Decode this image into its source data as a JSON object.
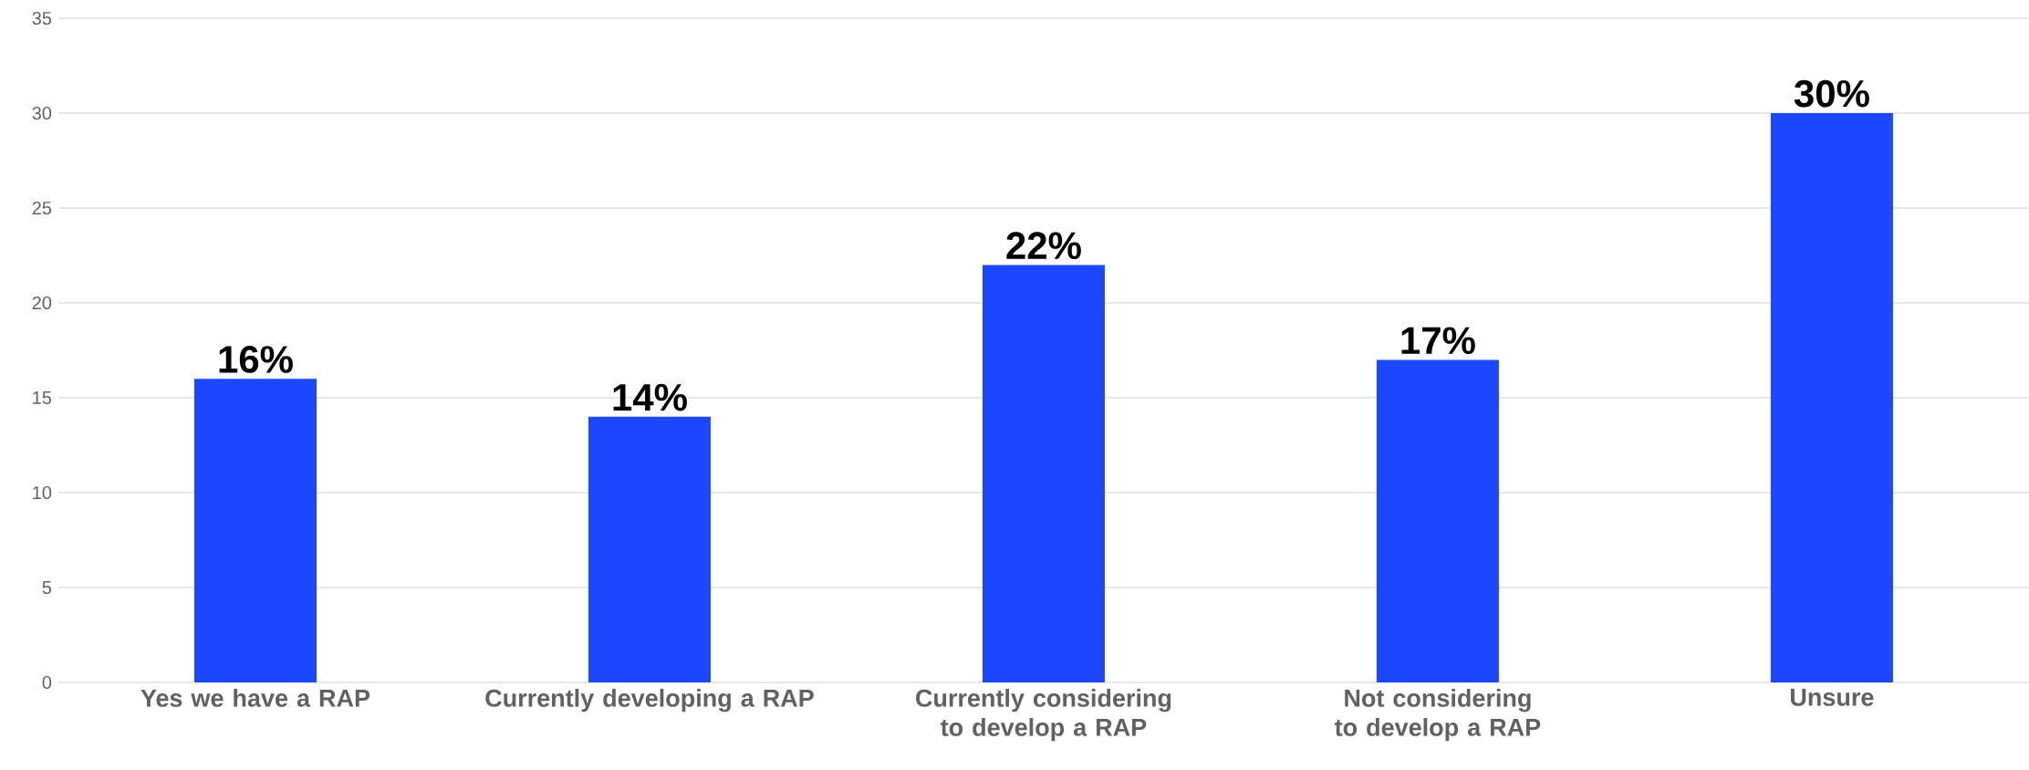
{
  "chart_data": {
    "type": "bar",
    "categories": [
      "Yes we have a RAP",
      "Currently developing a RAP",
      "Currently considering to develop a RAP",
      "Not considering to develop a RAP",
      "Unsure"
    ],
    "values": [
      16,
      14,
      22,
      17,
      30
    ],
    "value_labels": [
      "16%",
      "14%",
      "22%",
      "17%",
      "30%"
    ],
    "color": "#1a47ff",
    "ylim": [
      0,
      35
    ],
    "yticks": [
      0,
      5,
      10,
      15,
      20,
      25,
      30,
      35
    ],
    "grid": "y"
  }
}
